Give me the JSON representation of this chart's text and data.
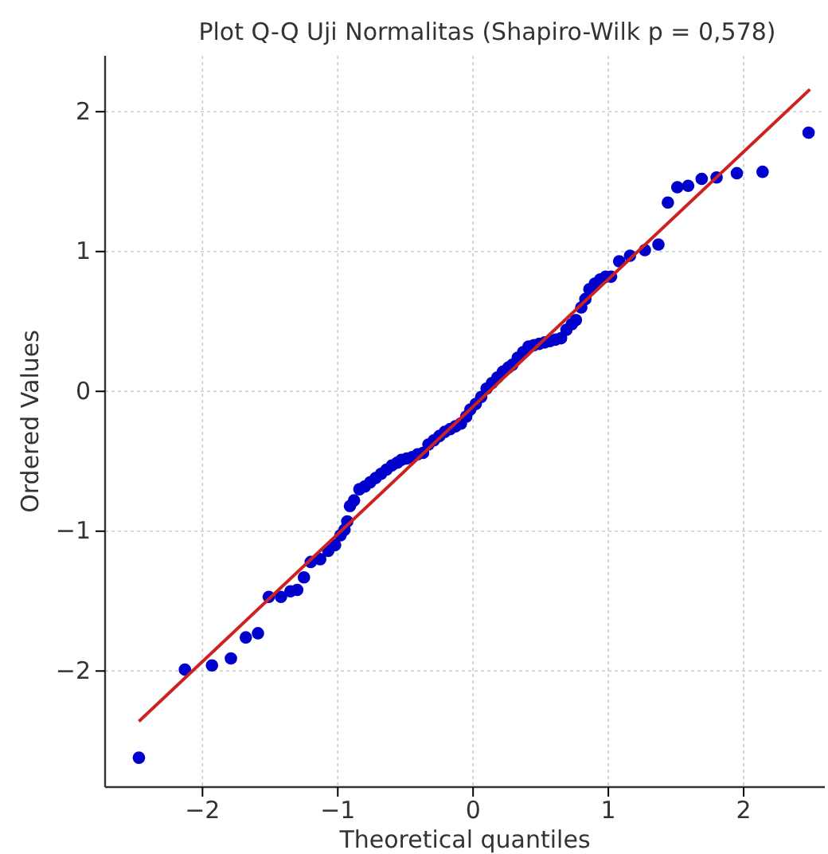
{
  "chart_data": {
    "type": "scatter",
    "title": "Plot Q-Q Uji Normalitas (Shapiro-Wilk p = 0,578)",
    "xlabel": "Theoretical quantiles",
    "ylabel": "Ordered Values",
    "xlim": [
      -2.72,
      2.6
    ],
    "ylim": [
      -2.83,
      2.4
    ],
    "xticks": [
      -2,
      -1,
      0,
      1,
      2
    ],
    "yticks": [
      -2,
      -1,
      0,
      1,
      2
    ],
    "grid": true,
    "marker": "circle",
    "series": [
      {
        "color": "#0000cc",
        "x": [
          -2.47,
          -2.13,
          -1.93,
          -1.79,
          -1.68,
          -1.59,
          -1.51,
          -1.42,
          -1.35,
          -1.3,
          -1.25,
          -1.2,
          -1.13,
          -1.07,
          -1.02,
          -0.98,
          -0.95,
          -0.93,
          -0.91,
          -0.88,
          -0.84,
          -0.8,
          -0.76,
          -0.72,
          -0.68,
          -0.64,
          -0.6,
          -0.56,
          -0.53,
          -0.49,
          -0.45,
          -0.41,
          -0.37,
          -0.33,
          -0.29,
          -0.25,
          -0.21,
          -0.17,
          -0.13,
          -0.09,
          -0.05,
          -0.02,
          0.02,
          0.06,
          0.1,
          0.14,
          0.18,
          0.22,
          0.26,
          0.29,
          0.33,
          0.37,
          0.41,
          0.45,
          0.49,
          0.53,
          0.57,
          0.61,
          0.65,
          0.69,
          0.73,
          0.76,
          0.8,
          0.83,
          0.86,
          0.9,
          0.94,
          0.98,
          1.02,
          1.08,
          1.16,
          1.27,
          1.37,
          1.44,
          1.51,
          1.59,
          1.69,
          1.8,
          1.95,
          2.14,
          2.48
        ],
        "values": [
          -2.62,
          -1.99,
          -1.96,
          -1.91,
          -1.76,
          -1.73,
          -1.47,
          -1.47,
          -1.43,
          -1.42,
          -1.33,
          -1.22,
          -1.2,
          -1.14,
          -1.1,
          -1.03,
          -0.99,
          -0.93,
          -0.82,
          -0.78,
          -0.7,
          -0.68,
          -0.65,
          -0.62,
          -0.59,
          -0.56,
          -0.53,
          -0.51,
          -0.49,
          -0.48,
          -0.47,
          -0.45,
          -0.44,
          -0.38,
          -0.35,
          -0.32,
          -0.29,
          -0.27,
          -0.25,
          -0.23,
          -0.18,
          -0.13,
          -0.09,
          -0.04,
          0.02,
          0.06,
          0.1,
          0.14,
          0.17,
          0.19,
          0.24,
          0.28,
          0.32,
          0.33,
          0.34,
          0.35,
          0.36,
          0.37,
          0.38,
          0.44,
          0.48,
          0.51,
          0.6,
          0.66,
          0.73,
          0.77,
          0.8,
          0.82,
          0.82,
          0.93,
          0.97,
          1.01,
          1.05,
          1.35,
          1.46,
          1.47,
          1.52,
          1.53,
          1.56,
          1.57,
          1.85
        ]
      },
      {
        "type": "line",
        "color": "#cc2222",
        "marker": "none",
        "line_style": "solid",
        "x": [
          -2.47,
          2.49
        ],
        "values": [
          -2.36,
          2.16
        ]
      }
    ]
  }
}
